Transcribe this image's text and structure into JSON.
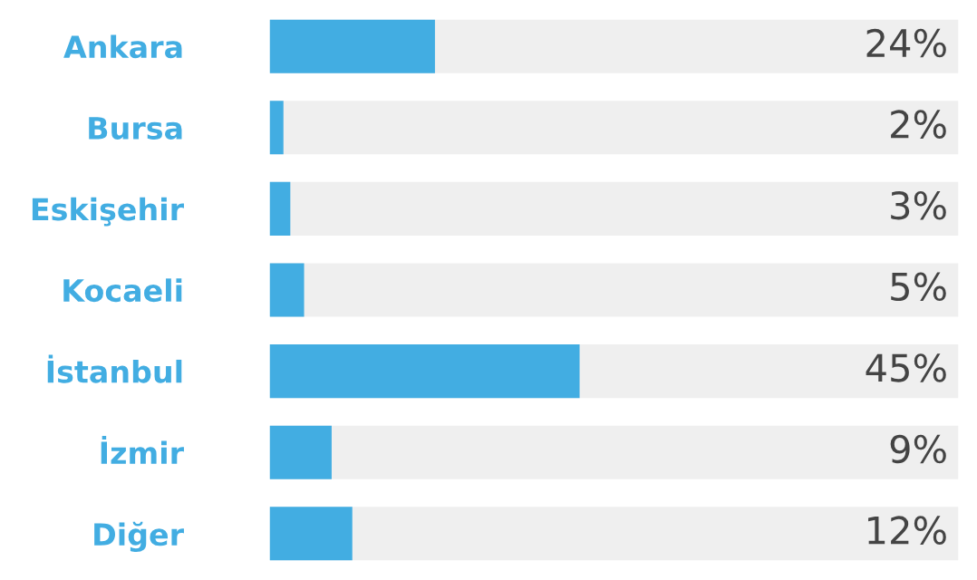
{
  "chart_data": {
    "type": "bar",
    "orientation": "horizontal",
    "categories": [
      "Ankara",
      "Bursa",
      "Eskişehir",
      "Kocaeli",
      "İstanbul",
      "İzmir",
      "Diğer"
    ],
    "values": [
      24,
      2,
      3,
      5,
      45,
      9,
      12
    ],
    "value_labels": [
      "24%",
      "2%",
      "3%",
      "5%",
      "45%",
      "9%",
      "12%"
    ],
    "color": "#42ade2",
    "xlim": [
      0,
      100
    ],
    "tick_labels": "y",
    "grid": false,
    "legend": false
  }
}
